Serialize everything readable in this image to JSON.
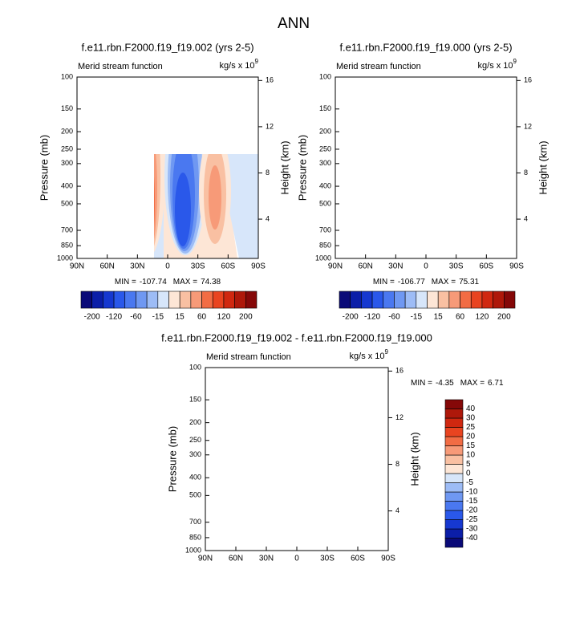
{
  "title": "ANN",
  "chart_data": [
    {
      "type": "contour",
      "title": "f.e11.rbn.F2000.f19_f19.002 (yrs 2-5)",
      "left_label": "Merid stream function",
      "units": "kg/s x 10",
      "units_exponent": "9",
      "ylabel": "Pressure (mb)",
      "y2label": "Height (km)",
      "xlim": [
        90,
        -90
      ],
      "xticks": [
        {
          "value": 90,
          "label": "90N"
        },
        {
          "value": 60,
          "label": "60N"
        },
        {
          "value": 30,
          "label": "30N"
        },
        0,
        {
          "value": -30,
          "label": "30S"
        },
        {
          "value": -60,
          "label": "60S"
        },
        {
          "value": -90,
          "label": "90S"
        }
      ],
      "ylim": [
        1000,
        100
      ],
      "ylog": true,
      "yticks": [
        1000,
        850,
        700,
        500,
        400,
        300,
        250,
        200,
        150,
        100
      ],
      "y2lim": [
        0.6,
        16.3
      ],
      "y2ticks": [
        4,
        8,
        12,
        16
      ],
      "min_label": "MIN =",
      "min": -107.74,
      "max_label": "MAX =",
      "max": 74.38,
      "colorbar": {
        "orientation": "horizontal",
        "levels": [
          -200,
          -120,
          -60,
          -15,
          15,
          60,
          120,
          200
        ],
        "colors": [
          "#0a0a78",
          "#0b1ea8",
          "#1638d0",
          "#2a58ea",
          "#4a78f0",
          "#6f98f2",
          "#9dbcf6",
          "#d7e6fa",
          "#fde6d6",
          "#f9c0a2",
          "#f79a78",
          "#f26c44",
          "#e94420",
          "#d02810",
          "#ae180a",
          "#850808"
        ]
      }
    },
    {
      "type": "contour",
      "title": "f.e11.rbn.F2000.f19_f19.000 (yrs 2-5)",
      "left_label": "Merid stream function",
      "units": "kg/s x 10",
      "units_exponent": "9",
      "ylabel": "Pressure (mb)",
      "y2label": "Height (km)",
      "xlim": [
        90,
        -90
      ],
      "xticks": [
        {
          "value": 90,
          "label": "90N"
        },
        {
          "value": 60,
          "label": "60N"
        },
        {
          "value": 30,
          "label": "30N"
        },
        0,
        {
          "value": -30,
          "label": "30S"
        },
        {
          "value": -60,
          "label": "60S"
        },
        {
          "value": -90,
          "label": "90S"
        }
      ],
      "ylim": [
        1000,
        100
      ],
      "ylog": true,
      "yticks": [
        1000,
        850,
        700,
        500,
        400,
        300,
        250,
        200,
        150,
        100
      ],
      "y2lim": [
        0.6,
        16.3
      ],
      "y2ticks": [
        4,
        8,
        12,
        16
      ],
      "min_label": "MIN =",
      "min": -106.77,
      "max_label": "MAX =",
      "max": 75.31,
      "colorbar": {
        "orientation": "horizontal",
        "levels": [
          -200,
          -120,
          -60,
          -15,
          15,
          60,
          120,
          200
        ],
        "colors": [
          "#0a0a78",
          "#0b1ea8",
          "#1638d0",
          "#2a58ea",
          "#4a78f0",
          "#6f98f2",
          "#9dbcf6",
          "#d7e6fa",
          "#fde6d6",
          "#f9c0a2",
          "#f79a78",
          "#f26c44",
          "#e94420",
          "#d02810",
          "#ae180a",
          "#850808"
        ]
      }
    },
    {
      "type": "contour",
      "title": "f.e11.rbn.F2000.f19_f19.002 - f.e11.rbn.F2000.f19_f19.000",
      "left_label": "Merid stream function",
      "units": "kg/s x 10",
      "units_exponent": "9",
      "ylabel": "Pressure (mb)",
      "y2label": "Height (km)",
      "xlim": [
        90,
        -90
      ],
      "xticks": [
        {
          "value": 90,
          "label": "90N"
        },
        {
          "value": 60,
          "label": "60N"
        },
        {
          "value": 30,
          "label": "30N"
        },
        0,
        {
          "value": -30,
          "label": "30S"
        },
        {
          "value": -60,
          "label": "60S"
        },
        {
          "value": -90,
          "label": "90S"
        }
      ],
      "ylim": [
        1000,
        100
      ],
      "ylog": true,
      "yticks": [
        1000,
        850,
        700,
        500,
        400,
        300,
        250,
        200,
        150,
        100
      ],
      "y2lim": [
        0.6,
        16.3
      ],
      "y2ticks": [
        4,
        8,
        12,
        16
      ],
      "min_label": "MIN =",
      "min": -4.35,
      "max_label": "MAX =",
      "max": 6.71,
      "colorbar": {
        "orientation": "vertical",
        "levels": [
          -40,
          -30,
          -25,
          -20,
          -15,
          -10,
          -5,
          0,
          5,
          10,
          15,
          20,
          25,
          30,
          40
        ],
        "colors": [
          "#0a0a78",
          "#0b1ea8",
          "#1638d0",
          "#2a58ea",
          "#4a78f0",
          "#6f98f2",
          "#9dbcf6",
          "#d7e6fa",
          "#fde6d6",
          "#f9c0a2",
          "#f79a78",
          "#f26c44",
          "#e94420",
          "#d02810",
          "#ae180a",
          "#850808"
        ]
      }
    }
  ]
}
